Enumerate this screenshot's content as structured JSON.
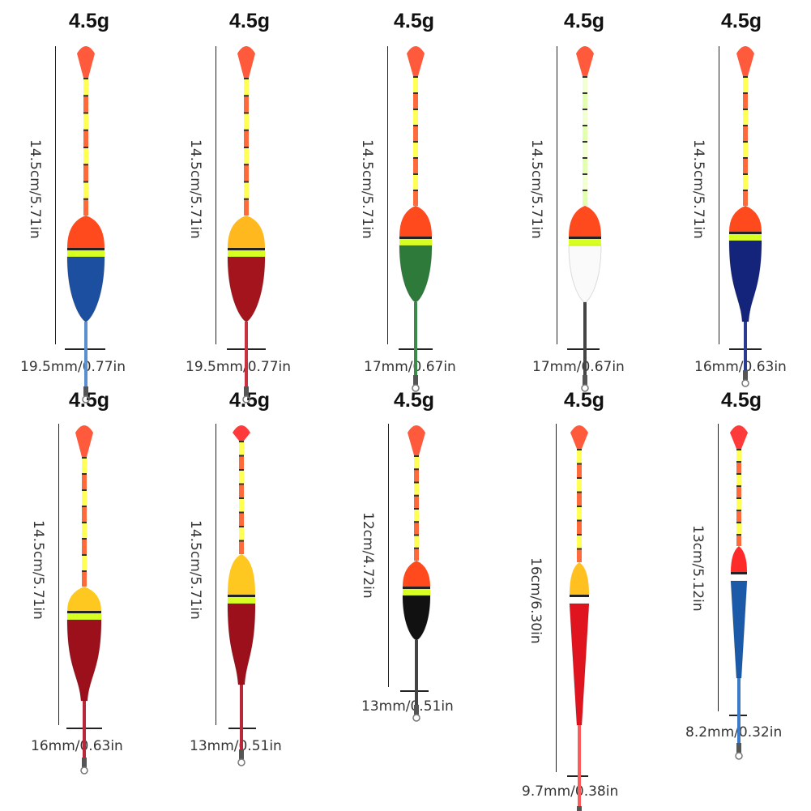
{
  "floats": [
    {
      "weight": "4.5g",
      "height": "14.5cm/5.71in",
      "width": "19.5mm/0.77in",
      "tip_color": "#ff5a3c",
      "antenna": [
        "#ffff55",
        "#ff6a3a"
      ],
      "cap_color": "#ff4a1e",
      "band_color": "#d8ff22",
      "body_color": "#1d4fa0",
      "stem_color": "#5b8fd0",
      "shape": "egg"
    },
    {
      "weight": "4.5g",
      "height": "14.5cm/5.71in",
      "width": "19.5mm/0.77in",
      "tip_color": "#ff5a3c",
      "antenna": [
        "#ffff55",
        "#ff6a3a"
      ],
      "cap_color": "#ffb81e",
      "band_color": "#d8ff22",
      "body_color": "#a4141c",
      "stem_color": "#c83240",
      "shape": "egg"
    },
    {
      "weight": "4.5g",
      "height": "14.5cm/5.71in",
      "width": "17mm/0.67in",
      "tip_color": "#ff5a3c",
      "antenna": [
        "#ffff55",
        "#ff6a3a"
      ],
      "cap_color": "#ff4a1e",
      "band_color": "#d8ff22",
      "body_color": "#2e7a3a",
      "stem_color": "#3c8a4a",
      "shape": "egg-slim"
    },
    {
      "weight": "4.5g",
      "height": "14.5cm/5.71in",
      "width": "17mm/0.67in",
      "tip_color": "#ff5a3c",
      "antenna": [
        "#f2ffd2",
        "#e2ffb0"
      ],
      "cap_color": "#ff4a1e",
      "band_color": "#d8ff22",
      "body_color": "#fafafa",
      "stem_color": "#444444",
      "shape": "egg-slim"
    },
    {
      "weight": "4.5g",
      "height": "14.5cm/5.71in",
      "width": "16mm/0.63in",
      "tip_color": "#ff5a3c",
      "antenna": [
        "#ffff55",
        "#ff6a3a"
      ],
      "cap_color": "#ff4a1e",
      "band_color": "#d8ff22",
      "body_color": "#14247a",
      "stem_color": "#2a3c90",
      "shape": "teardrop"
    },
    {
      "weight": "4.5g",
      "height": "14.5cm/5.71in",
      "width": "16mm/0.63in",
      "tip_color": "#ff5a3c",
      "antenna": [
        "#ffff55",
        "#ff6a3a"
      ],
      "cap_color": "#ffc820",
      "band_color": "#d8ff22",
      "body_color": "#9c101c",
      "stem_color": "#b82838",
      "shape": "teardrop"
    },
    {
      "weight": "4.5g",
      "height": "14.5cm/5.71in",
      "width": "13mm/0.51in",
      "tip_color": "#ff3a3a",
      "antenna": [
        "#ffff55",
        "#ff6a3a"
      ],
      "cap_color": "#ffc820",
      "band_color": "#d8ff22",
      "body_color": "#9c101c",
      "stem_color": "#b82838",
      "shape": "spindle"
    },
    {
      "weight": "4.5g",
      "height": "12cm/4.72in",
      "width": "13mm/0.51in",
      "tip_color": "#ff5a3c",
      "antenna": [
        "#ffff55",
        "#ff6a3a"
      ],
      "cap_color": "#ff4a1e",
      "band_color": "#d8ff22",
      "body_color": "#111111",
      "stem_color": "#444444",
      "shape": "egg-short"
    },
    {
      "weight": "4.5g",
      "height": "16cm/6.30in",
      "width": "9.7mm/0.38in",
      "tip_color": "#ff5a3c",
      "antenna": [
        "#ffff55",
        "#ff6a3a"
      ],
      "cap_color": "#ffc020",
      "band_color": "#ffffff",
      "body_color": "#e0141e",
      "stem_color": "#ff5a5a",
      "shape": "pencil"
    },
    {
      "weight": "4.5g",
      "height": "13cm/5.12in",
      "width": "8.2mm/0.32in",
      "tip_color": "#ff3a3a",
      "antenna": [
        "#ffff55",
        "#ff6a3a"
      ],
      "cap_color": "#ff2a2a",
      "band_color": "#ffffff",
      "body_color": "#1a5aa8",
      "stem_color": "#3a7ac8",
      "shape": "pencil-blue"
    }
  ]
}
